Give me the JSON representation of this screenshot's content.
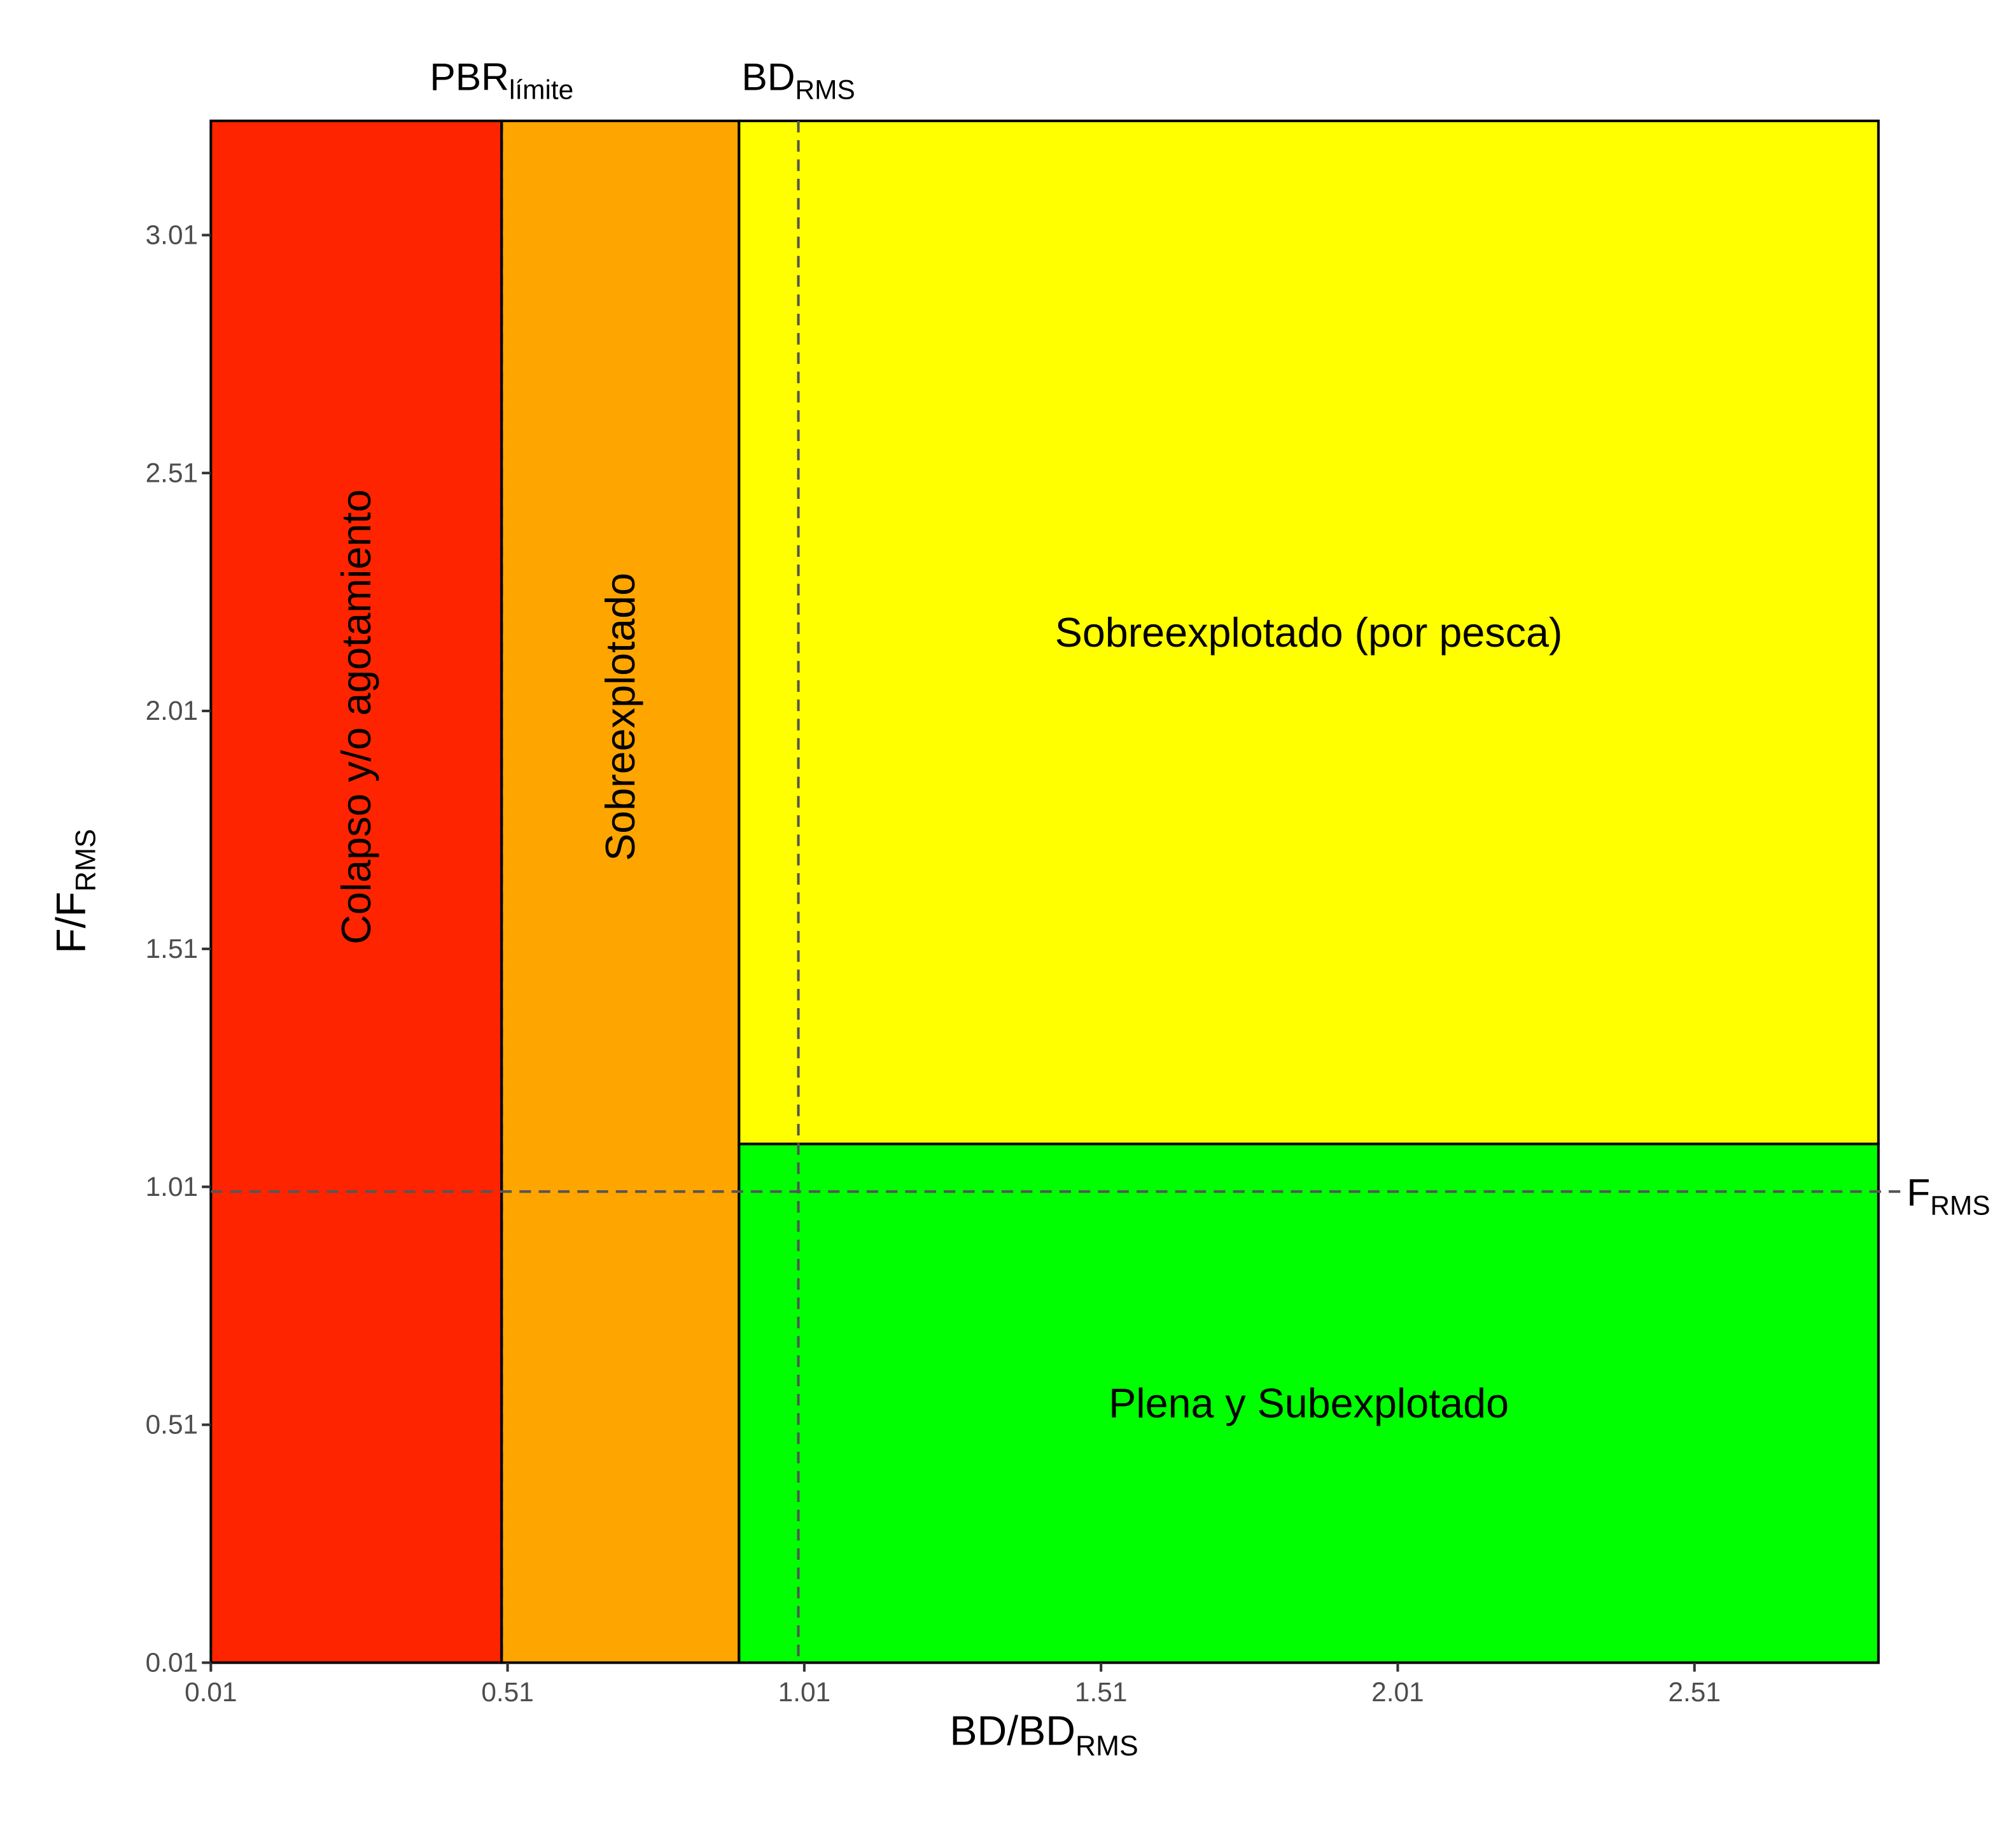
{
  "chart_data": {
    "type": "zones",
    "x_label": {
      "text": "BD/BD",
      "sub": "RMS"
    },
    "y_label": {
      "text": "F/F",
      "sub": "RMS"
    },
    "xlim": [
      0.01,
      2.82
    ],
    "ylim": [
      0.01,
      3.25
    ],
    "xticks": [
      0.01,
      0.51,
      1.01,
      1.51,
      2.01,
      2.51
    ],
    "yticks": [
      0.01,
      0.51,
      1.01,
      1.51,
      2.01,
      2.51,
      3.01
    ],
    "regions": [
      {
        "name": "Colapso y/o agotamiento",
        "color": "#ff2400",
        "x": [
          0.01,
          0.5
        ],
        "y": [
          0.01,
          3.25
        ]
      },
      {
        "name": "Sobreexplotado",
        "color": "#ffa500",
        "x": [
          0.5,
          0.9
        ],
        "y": [
          0.01,
          3.25
        ]
      },
      {
        "name": "Sobreexplotado (por pesca)",
        "color": "#ffff00",
        "x": [
          0.9,
          2.82
        ],
        "y": [
          1.1,
          3.25
        ]
      },
      {
        "name": "Plena y Subexplotado",
        "color": "#00ff00",
        "x": [
          0.9,
          2.82
        ],
        "y": [
          0.01,
          1.1
        ]
      }
    ],
    "vlines": [
      {
        "value": 0.5,
        "text": "PBR",
        "sub": "límite",
        "color": "#000000"
      },
      {
        "value": 1.0,
        "text": "BD",
        "sub": "RMS",
        "color": "#555555"
      }
    ],
    "hlines": [
      {
        "value": 1.0,
        "text": "F",
        "sub": "RMS",
        "color": "#555555"
      }
    ]
  }
}
